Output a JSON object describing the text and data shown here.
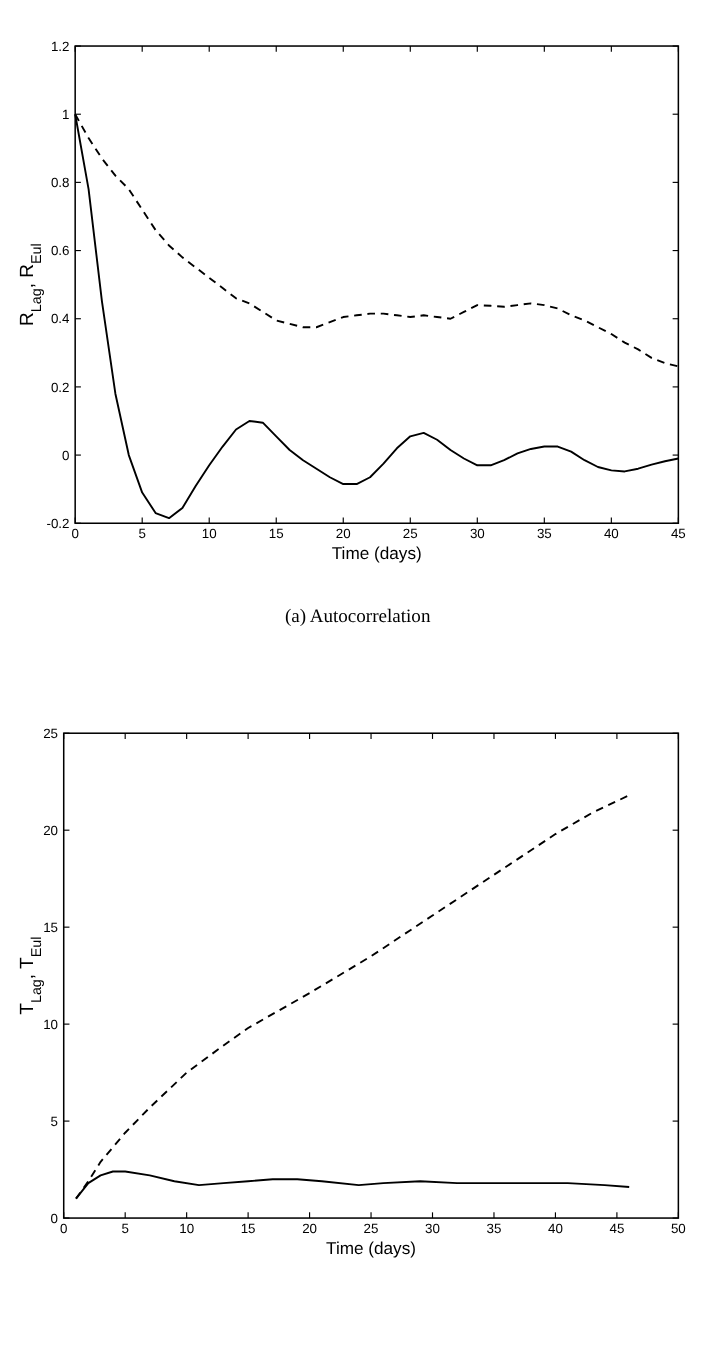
{
  "chart_data": [
    {
      "type": "line",
      "xlabel": "Time (days)",
      "ylabel": "R$_{Lag}$, R$_{Eul}$",
      "annotations": [
        "(a) Autocorrelation"
      ],
      "xlim": [
        0,
        45
      ],
      "xticks": [
        0,
        5,
        10,
        15,
        20,
        25,
        30,
        35,
        40,
        45
      ],
      "ylim": [
        -0.2,
        1.2
      ],
      "yticks": [
        -0.2,
        0,
        0.2,
        0.4,
        0.6,
        0.8,
        1,
        1.2
      ],
      "x": [
        0,
        1,
        2,
        3,
        4,
        5,
        6,
        7,
        8,
        9,
        10,
        11,
        12,
        13,
        14,
        15,
        16,
        17,
        18,
        19,
        20,
        21,
        22,
        23,
        24,
        25,
        26,
        27,
        28,
        29,
        30,
        31,
        32,
        33,
        34,
        35,
        36,
        37,
        38,
        39,
        40,
        41,
        42,
        43,
        44,
        45
      ],
      "series": [
        {
          "color": "#000000",
          "line_style": "solid",
          "values": [
            1,
            0.78,
            0.45,
            0.18,
            0,
            -0.11,
            -0.17,
            -0.185,
            -0.155,
            -0.09,
            -0.03,
            0.025,
            0.075,
            0.1,
            0.095,
            0.055,
            0.015,
            -0.015,
            -0.04,
            -0.065,
            -0.085,
            -0.085,
            -0.065,
            -0.025,
            0.02,
            0.055,
            0.065,
            0.045,
            0.015,
            -0.01,
            -0.03,
            -0.03,
            -0.015,
            0.005,
            0.018,
            0.025,
            0.025,
            0.01,
            -0.015,
            -0.035,
            -0.045,
            -0.048,
            -0.04,
            -0.028,
            -0.018,
            -0.01
          ]
        },
        {
          "color": "#000000",
          "line_style": "dashed",
          "values": [
            1,
            0.93,
            0.87,
            0.82,
            0.78,
            0.72,
            0.66,
            0.615,
            0.58,
            0.55,
            0.52,
            0.49,
            0.46,
            0.445,
            0.42,
            0.395,
            0.385,
            0.375,
            0.375,
            0.39,
            0.405,
            0.41,
            0.415,
            0.415,
            0.41,
            0.405,
            0.41,
            0.405,
            0.4,
            0.42,
            0.44,
            0.438,
            0.435,
            0.44,
            0.445,
            0.44,
            0.43,
            0.41,
            0.395,
            0.375,
            0.355,
            0.33,
            0.31,
            0.285,
            0.27,
            0.26
          ]
        }
      ]
    },
    {
      "type": "line",
      "xlabel": "Time (days)",
      "ylabel": "T$_{Lag}$, T$_{Eul}$",
      "xlim": [
        0,
        50
      ],
      "xticks": [
        0,
        5,
        10,
        15,
        20,
        25,
        30,
        35,
        40,
        45,
        50
      ],
      "ylim": [
        0,
        25
      ],
      "yticks": [
        0,
        5,
        10,
        15,
        20,
        25
      ],
      "series": [
        {
          "color": "#000000",
          "line_style": "solid",
          "x": [
            1,
            2,
            3,
            4,
            5,
            7,
            9,
            11,
            13,
            15,
            17,
            19,
            21,
            24,
            26,
            29,
            32,
            35,
            38,
            41,
            44,
            46
          ],
          "values": [
            1,
            1.8,
            2.2,
            2.4,
            2.4,
            2.2,
            1.9,
            1.7,
            1.8,
            1.9,
            2,
            2,
            1.9,
            1.7,
            1.8,
            1.9,
            1.8,
            1.8,
            1.8,
            1.8,
            1.7,
            1.6
          ]
        },
        {
          "color": "#000000",
          "line_style": "dashed",
          "x": [
            1,
            2,
            3,
            5,
            7,
            10,
            13,
            15,
            20,
            25,
            30,
            35,
            40,
            43,
            46
          ],
          "values": [
            1,
            1.9,
            2.9,
            4.4,
            5.7,
            7.5,
            8.9,
            9.8,
            11.6,
            13.5,
            15.6,
            17.7,
            19.8,
            20.9,
            21.8
          ]
        }
      ]
    }
  ]
}
